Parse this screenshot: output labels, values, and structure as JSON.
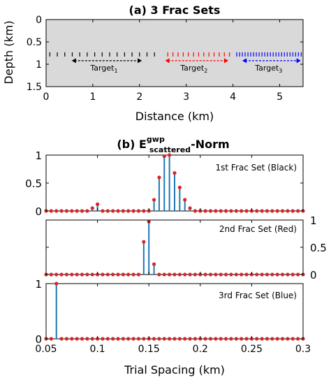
{
  "panel_a": {
    "title": "(a) 3 Frac Sets",
    "xlabel": "Distance (km)",
    "ylabel": "Depth (km)",
    "targets": [
      {
        "label": "Target",
        "sub": "1",
        "x_start_km": 0.55,
        "x_end_km": 2.05,
        "color": "#000000"
      },
      {
        "label": "Target",
        "sub": "2",
        "x_start_km": 2.55,
        "x_end_km": 3.9,
        "color": "#ff0000"
      },
      {
        "label": "Target",
        "sub": "3",
        "x_start_km": 4.2,
        "x_end_km": 5.45,
        "color": "#0000ff"
      }
    ]
  },
  "panel_b": {
    "title_prefix": "(b) E",
    "title_sup": "gwp",
    "title_sub": "scattered",
    "title_suffix": "-Norm",
    "xlabel": "Trial Spacing (km)"
  },
  "chart_data": [
    {
      "type": "heatmap",
      "title": "(a) 3 Frac Sets",
      "xlabel": "Distance (km)",
      "ylabel": "Depth (km)",
      "xlim": [
        0,
        5.5
      ],
      "ylim": [
        1.5,
        0
      ],
      "xticks": [
        0,
        1,
        2,
        3,
        4,
        5
      ],
      "yticks": [
        0,
        0.5,
        1,
        1.5
      ],
      "background_color": "#d9d9d9",
      "fracture_depth_km": 0.78,
      "fracture_sets": [
        {
          "name": "1st Frac Set (Black)",
          "x_start_km": 0.0,
          "x_end_km": 2.4,
          "spacing_km": 0.16,
          "color": "#000000"
        },
        {
          "name": "2nd Frac Set (Red)",
          "x_start_km": 2.55,
          "x_end_km": 4.0,
          "spacing_km": 0.11,
          "color": "#ff0000"
        },
        {
          "name": "3rd Frac Set (Blue)",
          "x_start_km": 4.05,
          "x_end_km": 5.5,
          "spacing_km": 0.06,
          "color": "#0000ff"
        }
      ]
    },
    {
      "type": "scatter",
      "style": "stem",
      "label": "1st Frac Set (Black)",
      "xlim": [
        0.05,
        0.3
      ],
      "ylim": [
        0,
        1
      ],
      "ytick_side": "left",
      "yticks": [
        0,
        0.5,
        1
      ],
      "x_start": 0.05,
      "x_step": 0.005,
      "y": [
        0,
        0,
        0,
        0,
        0,
        0,
        0,
        0,
        0,
        0.05,
        0.12,
        0,
        0,
        0,
        0,
        0,
        0,
        0,
        0,
        0,
        0,
        0.2,
        0.6,
        0.98,
        1.0,
        0.68,
        0.42,
        0.2,
        0.05,
        0,
        0,
        0,
        0,
        0,
        0,
        0,
        0,
        0,
        0,
        0,
        0,
        0,
        0,
        0,
        0,
        0,
        0,
        0,
        0,
        0,
        0
      ],
      "stem_color": "#1f77b4",
      "marker_color": "#d62728"
    },
    {
      "type": "scatter",
      "style": "stem",
      "label": "2nd Frac Set (Red)",
      "xlim": [
        0.05,
        0.3
      ],
      "ylim": [
        0,
        1
      ],
      "ytick_side": "right",
      "yticks": [
        0,
        0.5,
        1
      ],
      "x_start": 0.05,
      "x_step": 0.005,
      "y": [
        0,
        0,
        0,
        0,
        0,
        0,
        0,
        0,
        0,
        0,
        0,
        0,
        0,
        0,
        0,
        0,
        0,
        0,
        0,
        0.6,
        0.97,
        0.19,
        0,
        0,
        0,
        0,
        0,
        0,
        0,
        0,
        0,
        0,
        0,
        0,
        0,
        0,
        0,
        0,
        0,
        0,
        0,
        0,
        0,
        0,
        0,
        0,
        0,
        0,
        0,
        0,
        0
      ],
      "stem_color": "#1f77b4",
      "marker_color": "#d62728"
    },
    {
      "type": "scatter",
      "style": "stem",
      "label": "3rd Frac Set (Blue)",
      "xlim": [
        0.05,
        0.3
      ],
      "ylim": [
        0,
        1
      ],
      "ytick_side": "left",
      "yticks": [
        0,
        1
      ],
      "xticks": [
        0.05,
        0.1,
        0.15,
        0.2,
        0.25,
        0.3
      ],
      "xlabel": "Trial Spacing (km)",
      "x_start": 0.05,
      "x_step": 0.005,
      "y": [
        0,
        0,
        1.0,
        0,
        0,
        0,
        0,
        0,
        0,
        0,
        0,
        0,
        0,
        0,
        0,
        0,
        0,
        0,
        0,
        0,
        0,
        0,
        0,
        0,
        0,
        0,
        0,
        0,
        0,
        0,
        0,
        0,
        0,
        0,
        0,
        0,
        0,
        0,
        0,
        0,
        0,
        0,
        0,
        0,
        0,
        0,
        0,
        0,
        0,
        0,
        0
      ],
      "stem_color": "#1f77b4",
      "marker_color": "#d62728"
    }
  ]
}
